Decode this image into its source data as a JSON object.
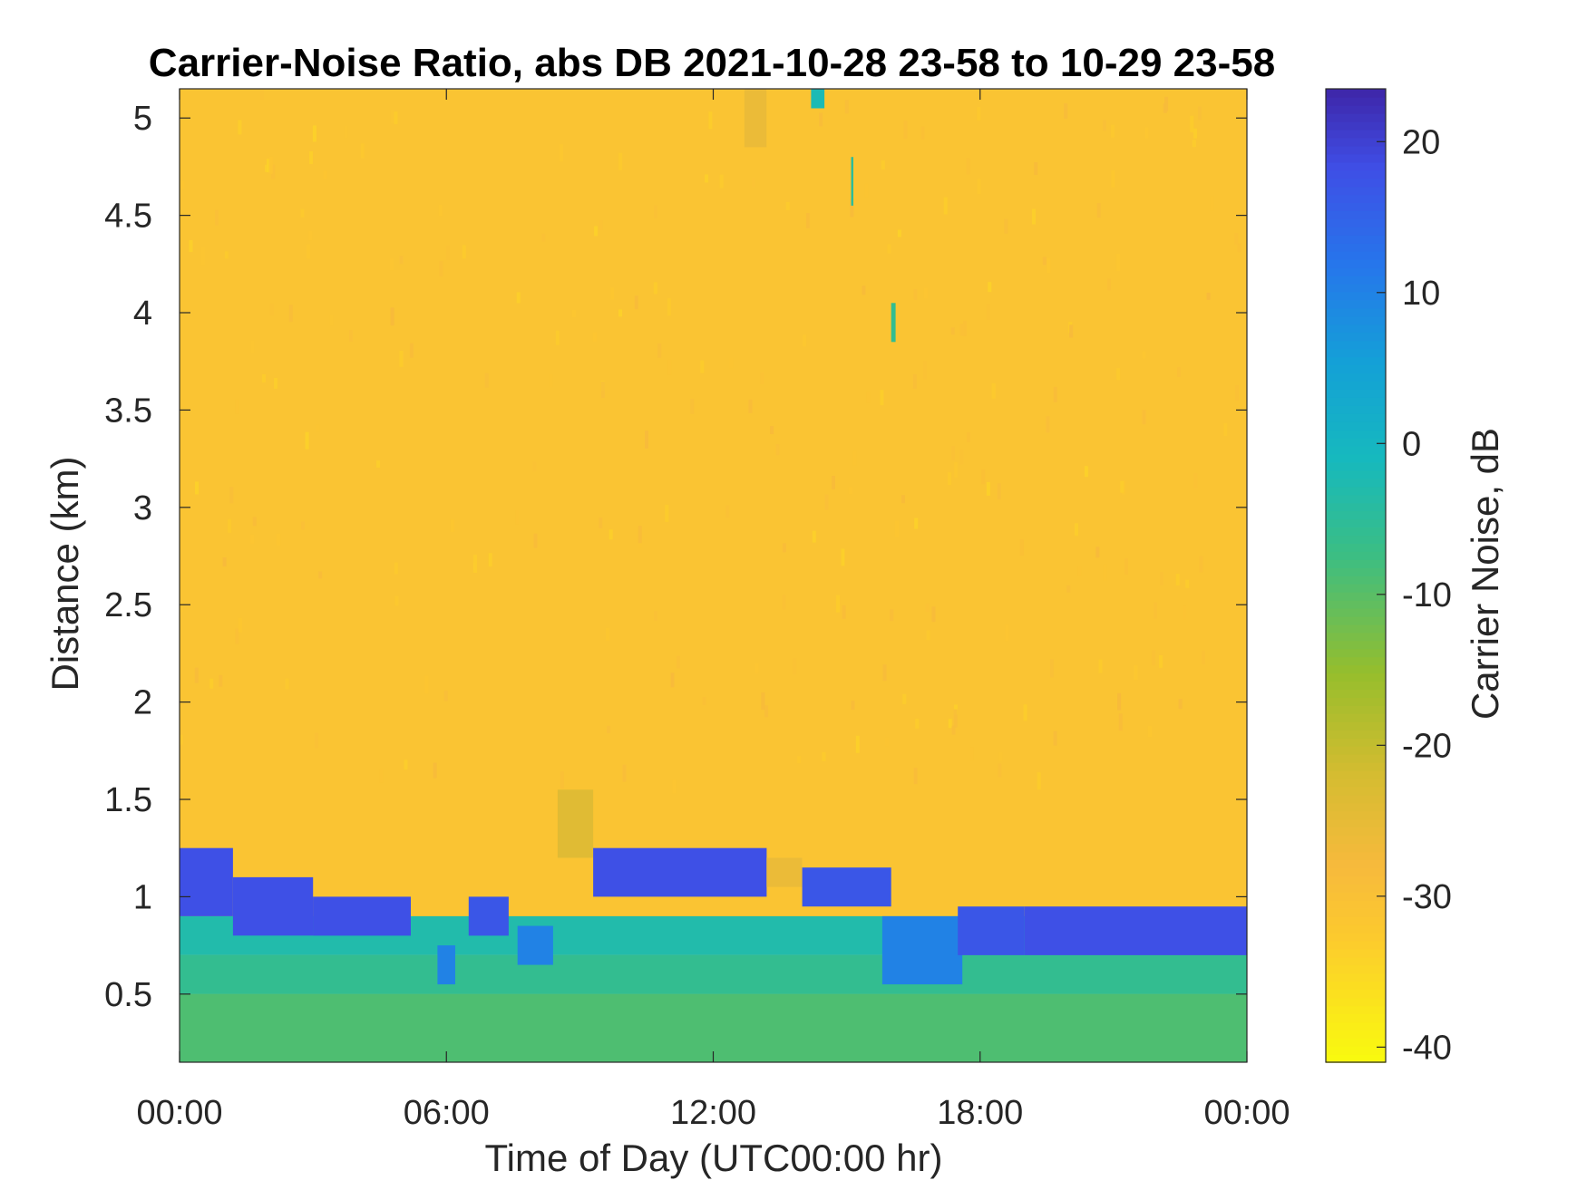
{
  "chart_data": {
    "type": "heatmap",
    "title": "Carrier-Noise Ratio, abs DB 2021-10-28 23-58 to 10-29 23-58",
    "xlabel": "Time of Day (UTC00:00 hr)",
    "ylabel": "Distance (km)",
    "colorbar_label": "Carrier Noise, dB",
    "colormap": "parula (reversed)",
    "x_unit": "hours",
    "xlim": [
      0,
      24
    ],
    "ylim": [
      0.15,
      5.15
    ],
    "clim": [
      -41,
      23.5
    ],
    "x_ticks": [
      0,
      6,
      12,
      18,
      24
    ],
    "x_tick_labels": [
      "00:00",
      "06:00",
      "12:00",
      "18:00",
      "00:00"
    ],
    "y_ticks": [
      0.5,
      1,
      1.5,
      2,
      2.5,
      3,
      3.5,
      4,
      4.5,
      5
    ],
    "y_tick_labels": [
      "0.5",
      "1",
      "1.5",
      "2",
      "2.5",
      "3",
      "3.5",
      "4",
      "4.5",
      "5"
    ],
    "colorbar_ticks": [
      -40,
      -30,
      -20,
      -10,
      0,
      10,
      20
    ],
    "colorbar_tick_labels": [
      "-40",
      "-30",
      "-20",
      "-10",
      "0",
      "10",
      "20"
    ],
    "background_value": -31,
    "regions": [
      {
        "x": [
          0,
          24
        ],
        "y": [
          0.15,
          0.5
        ],
        "value": -9
      },
      {
        "x": [
          0,
          24
        ],
        "y": [
          0.5,
          0.7
        ],
        "value": -6
      },
      {
        "x": [
          0,
          24
        ],
        "y": [
          0.7,
          0.9
        ],
        "value": -3
      },
      {
        "x": [
          0,
          1.2
        ],
        "y": [
          0.9,
          1.25
        ],
        "value": 18
      },
      {
        "x": [
          1.2,
          3.0
        ],
        "y": [
          0.8,
          1.1
        ],
        "value": 18
      },
      {
        "x": [
          3.0,
          5.2
        ],
        "y": [
          0.8,
          1.0
        ],
        "value": 18
      },
      {
        "x": [
          5.8,
          6.2
        ],
        "y": [
          0.55,
          0.75
        ],
        "value": 10
      },
      {
        "x": [
          6.5,
          7.4
        ],
        "y": [
          0.8,
          1.0
        ],
        "value": 17
      },
      {
        "x": [
          7.6,
          8.4
        ],
        "y": [
          0.65,
          0.85
        ],
        "value": 10
      },
      {
        "x": [
          8.5,
          9.3
        ],
        "y": [
          1.2,
          1.55
        ],
        "value": -24
      },
      {
        "x": [
          9.3,
          13.2
        ],
        "y": [
          1.0,
          1.25
        ],
        "value": 18
      },
      {
        "x": [
          13.2,
          14.0
        ],
        "y": [
          1.05,
          1.2
        ],
        "value": -26
      },
      {
        "x": [
          14.0,
          16.0
        ],
        "y": [
          0.95,
          1.15
        ],
        "value": 17
      },
      {
        "x": [
          15.8,
          17.6
        ],
        "y": [
          0.55,
          0.9
        ],
        "value": 10
      },
      {
        "x": [
          17.5,
          19.0
        ],
        "y": [
          0.7,
          0.95
        ],
        "value": 17
      },
      {
        "x": [
          19.0,
          24
        ],
        "y": [
          0.7,
          0.95
        ],
        "value": 18
      },
      {
        "x": [
          12.7,
          13.2
        ],
        "y": [
          4.85,
          5.15
        ],
        "value": -26
      },
      {
        "x": [
          14.2,
          14.5
        ],
        "y": [
          5.05,
          5.15
        ],
        "value": -2
      },
      {
        "x": [
          15.1,
          15.15
        ],
        "y": [
          4.55,
          4.8
        ],
        "value": -5
      },
      {
        "x": [
          16.0,
          16.1
        ],
        "y": [
          3.85,
          4.05
        ],
        "value": -6
      }
    ]
  }
}
